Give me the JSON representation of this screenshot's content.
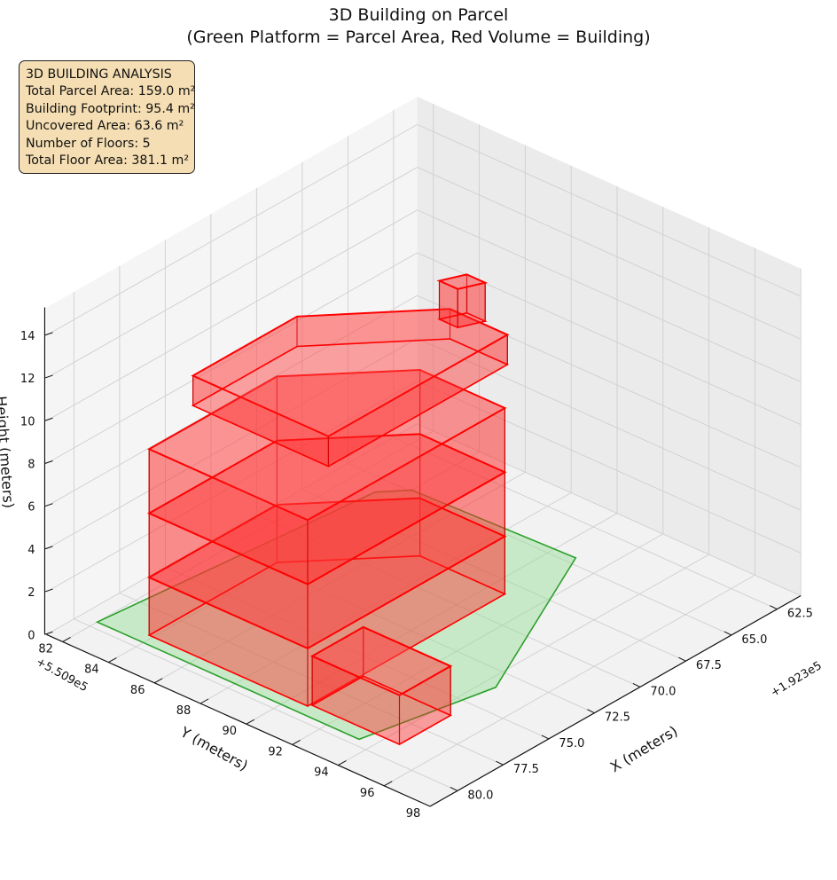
{
  "chart_data": {
    "type": "3d-surface",
    "title_line1": "3D Building on Parcel",
    "title_line2": "(Green Platform = Parcel Area, Red Volume = Building)",
    "xlabel": "X (meters)",
    "ylabel": "Y (meters)",
    "zlabel": "Height (meters)",
    "x_offset_label": "+1.923e5",
    "y_offset_label": "+5.509e5",
    "x_ticks": [
      "62.5",
      "65.0",
      "67.5",
      "70.0",
      "72.5",
      "75.0",
      "77.5",
      "80.0"
    ],
    "y_ticks": [
      "82",
      "84",
      "86",
      "88",
      "90",
      "92",
      "94",
      "96",
      "98"
    ],
    "z_ticks": [
      "0",
      "2",
      "4",
      "6",
      "8",
      "10",
      "12",
      "14"
    ],
    "xlim": [
      61.2,
      81.5
    ],
    "ylim": [
      81.3,
      98.0
    ],
    "zlim": [
      0,
      15.3
    ],
    "floor_height_m": 3.0,
    "floors": 5,
    "parcel_color": "#2ca02c",
    "building_color": "#ff0000",
    "grid": true
  },
  "info_box": {
    "heading": "3D BUILDING ANALYSIS",
    "total_parcel_area": "Total Parcel Area: 159.0 m²",
    "building_footprint": "Building Footprint: 95.4 m²",
    "uncovered_area": "Uncovered Area: 63.6 m²",
    "number_of_floors": "Number of Floors: 5",
    "total_floor_area": "Total Floor Area: 381.1 m²"
  }
}
